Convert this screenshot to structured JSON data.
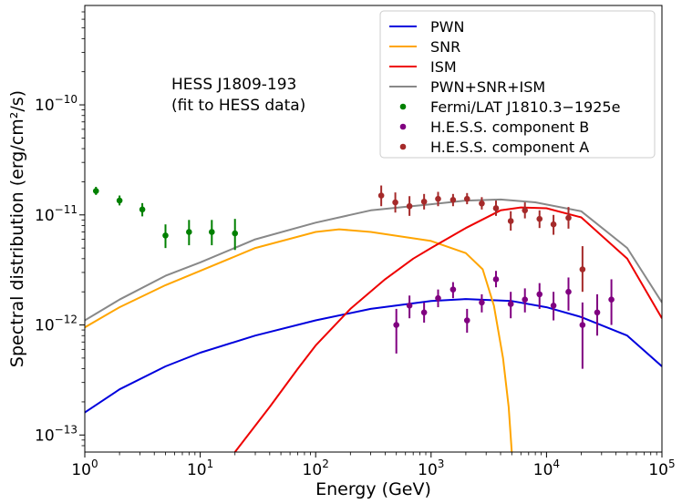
{
  "chart_data": {
    "type": "line",
    "title": "",
    "xlabel": "Energy (GeV)",
    "ylabel": "Spectral distribution (erg/cm²/s)",
    "xscale": "log",
    "yscale": "log",
    "xlim": [
      1,
      100000
    ],
    "ylim": [
      7e-14,
      8e-10
    ],
    "legend_position": "top-right",
    "annotation": [
      "HESS J1809-193",
      "(fit to HESS data)"
    ],
    "x_ticks": [
      {
        "value": 1,
        "mant": "10",
        "exp": "0"
      },
      {
        "value": 10,
        "mant": "10",
        "exp": "1"
      },
      {
        "value": 100,
        "mant": "10",
        "exp": "2"
      },
      {
        "value": 1000,
        "mant": "10",
        "exp": "3"
      },
      {
        "value": 10000,
        "mant": "10",
        "exp": "4"
      },
      {
        "value": 100000,
        "mant": "10",
        "exp": "5"
      }
    ],
    "y_ticks": [
      {
        "value": 1e-13,
        "mant": "10",
        "exp": "−13"
      },
      {
        "value": 1e-12,
        "mant": "10",
        "exp": "−12"
      },
      {
        "value": 1e-11,
        "mant": "10",
        "exp": "−11"
      },
      {
        "value": 1e-10,
        "mant": "10",
        "exp": "−10"
      }
    ],
    "lines": [
      {
        "name": "PWN",
        "color": "#0000dd",
        "points": [
          [
            1,
            1.6e-13
          ],
          [
            2,
            2.6e-13
          ],
          [
            5,
            4.2e-13
          ],
          [
            10,
            5.6e-13
          ],
          [
            30,
            8e-13
          ],
          [
            100,
            1.1e-12
          ],
          [
            300,
            1.4e-12
          ],
          [
            1000,
            1.65e-12
          ],
          [
            2000,
            1.72e-12
          ],
          [
            5000,
            1.65e-12
          ],
          [
            10000,
            1.45e-12
          ],
          [
            20000,
            1.18e-12
          ],
          [
            50000,
            8e-13
          ],
          [
            100000,
            4.2e-13
          ]
        ]
      },
      {
        "name": "SNR",
        "color": "#ffa500",
        "points": [
          [
            1,
            9.5e-13
          ],
          [
            2,
            1.45e-12
          ],
          [
            5,
            2.3e-12
          ],
          [
            10,
            3.1e-12
          ],
          [
            30,
            5e-12
          ],
          [
            100,
            7e-12
          ],
          [
            160,
            7.4e-12
          ],
          [
            300,
            7e-12
          ],
          [
            1000,
            5.8e-12
          ],
          [
            2000,
            4.5e-12
          ],
          [
            2800,
            3.2e-12
          ],
          [
            3500,
            1.5e-12
          ],
          [
            4200,
            5e-13
          ],
          [
            4700,
            1.8e-13
          ],
          [
            5000,
            7e-14
          ]
        ]
      },
      {
        "name": "ISM",
        "color": "#ee0000",
        "points": [
          [
            20,
            7e-14
          ],
          [
            40,
            1.8e-13
          ],
          [
            70,
            4e-13
          ],
          [
            100,
            6.5e-13
          ],
          [
            200,
            1.4e-12
          ],
          [
            400,
            2.6e-12
          ],
          [
            700,
            4e-12
          ],
          [
            1000,
            5e-12
          ],
          [
            2000,
            7.6e-12
          ],
          [
            4000,
            1.1e-11
          ],
          [
            6000,
            1.17e-11
          ],
          [
            10000,
            1.15e-11
          ],
          [
            20000,
            9.5e-12
          ],
          [
            50000,
            4e-12
          ],
          [
            100000,
            1.15e-12
          ]
        ]
      },
      {
        "name": "PWN+SNR+ISM",
        "color": "#888888",
        "points": [
          [
            1,
            1.1e-12
          ],
          [
            2,
            1.7e-12
          ],
          [
            5,
            2.8e-12
          ],
          [
            10,
            3.7e-12
          ],
          [
            30,
            6e-12
          ],
          [
            100,
            8.5e-12
          ],
          [
            300,
            1.1e-11
          ],
          [
            1000,
            1.25e-11
          ],
          [
            2000,
            1.35e-11
          ],
          [
            4000,
            1.38e-11
          ],
          [
            8000,
            1.3e-11
          ],
          [
            20000,
            1.08e-11
          ],
          [
            50000,
            5e-12
          ],
          [
            100000,
            1.6e-12
          ]
        ]
      }
    ],
    "points_series": [
      {
        "name": "Fermi/LAT J1810.3−1925e",
        "color": "#008000",
        "points": [
          {
            "x": 1.25,
            "y": 1.65e-11,
            "lo": 1.52e-11,
            "hi": 1.8e-11
          },
          {
            "x": 2.0,
            "y": 1.35e-11,
            "lo": 1.22e-11,
            "hi": 1.5e-11
          },
          {
            "x": 3.15,
            "y": 1.12e-11,
            "lo": 9.7e-12,
            "hi": 1.28e-11
          },
          {
            "x": 5.0,
            "y": 6.5e-12,
            "lo": 5e-12,
            "hi": 8.2e-12
          },
          {
            "x": 8.0,
            "y": 7e-12,
            "lo": 5.3e-12,
            "hi": 9e-12
          },
          {
            "x": 12.6,
            "y": 7e-12,
            "lo": 5.3e-12,
            "hi": 9e-12
          },
          {
            "x": 20.0,
            "y": 6.8e-12,
            "lo": 4.8e-12,
            "hi": 9.2e-12
          }
        ]
      },
      {
        "name": "H.E.S.S. component B",
        "color": "#800080",
        "points": [
          {
            "x": 500,
            "y": 1e-12,
            "lo": 5.5e-13,
            "hi": 1.4e-12
          },
          {
            "x": 650,
            "y": 1.5e-12,
            "lo": 1.15e-12,
            "hi": 1.85e-12
          },
          {
            "x": 870,
            "y": 1.3e-12,
            "lo": 1.05e-12,
            "hi": 1.6e-12
          },
          {
            "x": 1150,
            "y": 1.75e-12,
            "lo": 1.45e-12,
            "hi": 2.1e-12
          },
          {
            "x": 1550,
            "y": 2.1e-12,
            "lo": 1.75e-12,
            "hi": 2.45e-12
          },
          {
            "x": 2050,
            "y": 1.1e-12,
            "lo": 8.5e-13,
            "hi": 1.4e-12
          },
          {
            "x": 2750,
            "y": 1.6e-12,
            "lo": 1.3e-12,
            "hi": 1.9e-12
          },
          {
            "x": 3650,
            "y": 2.6e-12,
            "lo": 2.2e-12,
            "hi": 3.1e-12
          },
          {
            "x": 4900,
            "y": 1.55e-12,
            "lo": 1.15e-12,
            "hi": 2e-12
          },
          {
            "x": 6500,
            "y": 1.7e-12,
            "lo": 1.3e-12,
            "hi": 2.15e-12
          },
          {
            "x": 8700,
            "y": 1.9e-12,
            "lo": 1.4e-12,
            "hi": 2.4e-12
          },
          {
            "x": 11500,
            "y": 1.5e-12,
            "lo": 1.1e-12,
            "hi": 2e-12
          },
          {
            "x": 15500,
            "y": 2e-12,
            "lo": 1.35e-12,
            "hi": 2.7e-12
          },
          {
            "x": 20500,
            "y": 1e-12,
            "lo": 4e-13,
            "hi": 1.6e-12
          },
          {
            "x": 27500,
            "y": 1.3e-12,
            "lo": 8e-13,
            "hi": 1.9e-12
          },
          {
            "x": 36500,
            "y": 1.7e-12,
            "lo": 1e-12,
            "hi": 2.6e-12
          }
        ]
      },
      {
        "name": "H.E.S.S. component A",
        "color": "#a52a2a",
        "points": [
          {
            "x": 370,
            "y": 1.5e-11,
            "lo": 1.2e-11,
            "hi": 1.85e-11
          },
          {
            "x": 490,
            "y": 1.3e-11,
            "lo": 1.05e-11,
            "hi": 1.6e-11
          },
          {
            "x": 650,
            "y": 1.2e-11,
            "lo": 9.8e-12,
            "hi": 1.48e-11
          },
          {
            "x": 870,
            "y": 1.32e-11,
            "lo": 1.12e-11,
            "hi": 1.55e-11
          },
          {
            "x": 1150,
            "y": 1.4e-11,
            "lo": 1.2e-11,
            "hi": 1.62e-11
          },
          {
            "x": 1550,
            "y": 1.37e-11,
            "lo": 1.2e-11,
            "hi": 1.55e-11
          },
          {
            "x": 2050,
            "y": 1.4e-11,
            "lo": 1.25e-11,
            "hi": 1.58e-11
          },
          {
            "x": 2750,
            "y": 1.27e-11,
            "lo": 1.12e-11,
            "hi": 1.45e-11
          },
          {
            "x": 3650,
            "y": 1.15e-11,
            "lo": 9.8e-12,
            "hi": 1.35e-11
          },
          {
            "x": 4900,
            "y": 8.8e-12,
            "lo": 7.2e-12,
            "hi": 1.08e-11
          },
          {
            "x": 6500,
            "y": 1.1e-11,
            "lo": 9.3e-12,
            "hi": 1.3e-11
          },
          {
            "x": 8700,
            "y": 9.2e-12,
            "lo": 7.6e-12,
            "hi": 1.1e-11
          },
          {
            "x": 11500,
            "y": 8.2e-12,
            "lo": 6.6e-12,
            "hi": 1e-11
          },
          {
            "x": 15500,
            "y": 9.4e-12,
            "lo": 7.5e-12,
            "hi": 1.18e-11
          },
          {
            "x": 20500,
            "y": 3.2e-12,
            "lo": 2e-12,
            "hi": 5.2e-12
          }
        ]
      }
    ]
  }
}
